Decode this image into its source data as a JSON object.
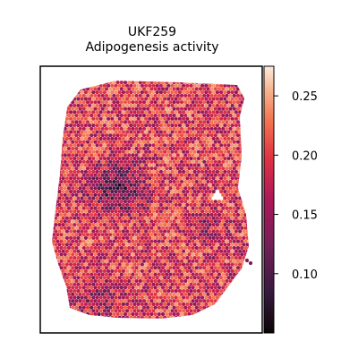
{
  "chart_data": {
    "type": "scatter",
    "subtype": "spatial-hexbin",
    "title": "UKF259",
    "subtitle": "Adipogenesis activity",
    "xlabel": "",
    "ylabel": "",
    "axes_ticks_visible": false,
    "grid": false,
    "colorbar": {
      "colormap": "rocket",
      "vmin": 0.05,
      "vmax": 0.275,
      "tick_labels": [
        "0.25",
        "0.20",
        "0.15",
        "0.10"
      ],
      "tick_values": [
        0.25,
        0.2,
        0.15,
        0.1
      ],
      "color_low": "#0b0405",
      "color_mid": "#c0224b",
      "color_high": "#f6d6c2"
    },
    "dense_regions": [
      {
        "description": "low activity cluster",
        "value": 0.09
      },
      {
        "description": "medium cluster",
        "value": 0.13
      }
    ]
  }
}
